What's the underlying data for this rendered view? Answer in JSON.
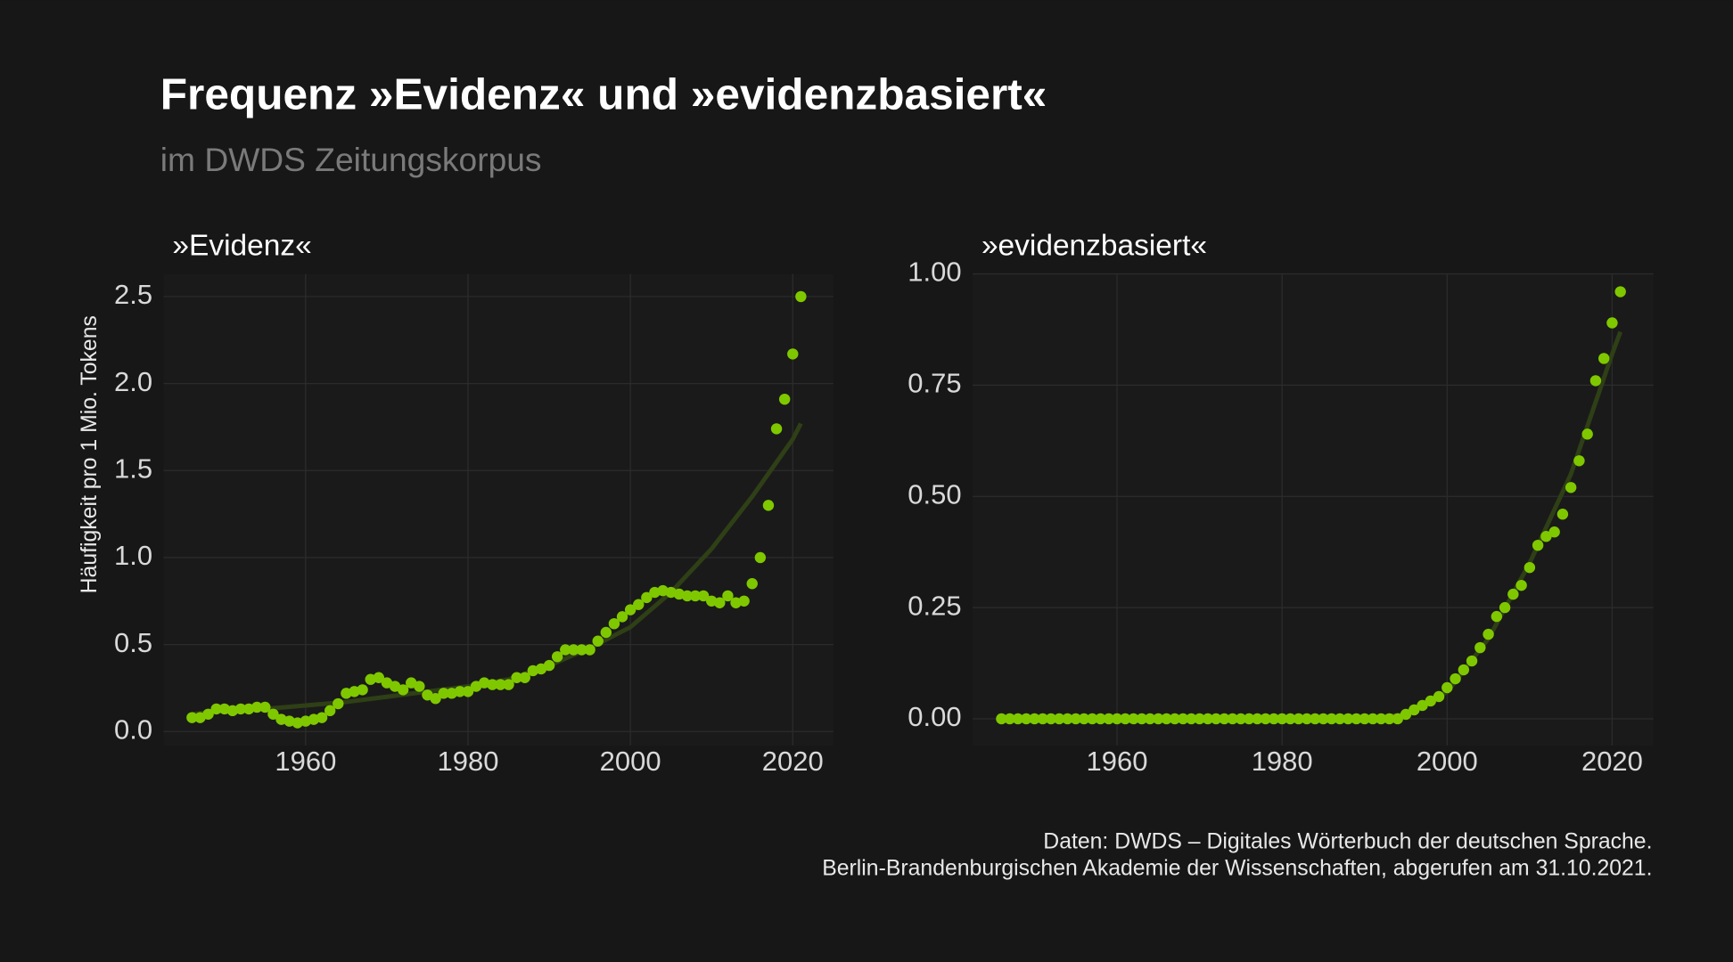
{
  "title": "Frequenz »Evidenz« und »evidenzbasiert«",
  "subtitle": "im DWDS Zeitungskorpus",
  "caption": [
    "Daten: DWDS – Digitales Wörterbuch der deutschen Sprache.",
    "Berlin-Brandenburgischen Akademie der Wissenschaften, abgerufen am 31.10.2021."
  ],
  "chart_data": [
    {
      "type": "scatter",
      "title": "»Evidenz«",
      "y_label": "Häufigkeit pro 1 Mio. Tokens",
      "x": [
        1946,
        1947,
        1948,
        1949,
        1950,
        1951,
        1952,
        1953,
        1954,
        1955,
        1956,
        1957,
        1958,
        1959,
        1960,
        1961,
        1962,
        1963,
        1964,
        1965,
        1966,
        1967,
        1968,
        1969,
        1970,
        1971,
        1972,
        1973,
        1974,
        1975,
        1976,
        1977,
        1978,
        1979,
        1980,
        1981,
        1982,
        1983,
        1984,
        1985,
        1986,
        1987,
        1988,
        1989,
        1990,
        1991,
        1992,
        1993,
        1994,
        1995,
        1996,
        1997,
        1998,
        1999,
        2000,
        2001,
        2002,
        2003,
        2004,
        2005,
        2006,
        2007,
        2008,
        2009,
        2010,
        2011,
        2012,
        2013,
        2014,
        2015,
        2016,
        2017,
        2018,
        2019,
        2020,
        2021
      ],
      "values": [
        0.08,
        0.08,
        0.1,
        0.13,
        0.13,
        0.12,
        0.13,
        0.13,
        0.14,
        0.14,
        0.1,
        0.07,
        0.06,
        0.05,
        0.06,
        0.07,
        0.08,
        0.12,
        0.16,
        0.22,
        0.23,
        0.24,
        0.3,
        0.31,
        0.28,
        0.26,
        0.24,
        0.28,
        0.26,
        0.21,
        0.19,
        0.22,
        0.22,
        0.23,
        0.23,
        0.26,
        0.28,
        0.27,
        0.27,
        0.27,
        0.31,
        0.31,
        0.35,
        0.36,
        0.38,
        0.43,
        0.47,
        0.47,
        0.47,
        0.47,
        0.52,
        0.57,
        0.62,
        0.66,
        0.7,
        0.73,
        0.77,
        0.8,
        0.81,
        0.8,
        0.79,
        0.78,
        0.78,
        0.78,
        0.75,
        0.74,
        0.78,
        0.74,
        0.75,
        0.85,
        1.0,
        1.3,
        1.74,
        1.91,
        2.17,
        2.5
      ],
      "color": "#7fc800",
      "trend": {
        "x": [
          1946,
          1950,
          1955,
          1960,
          1965,
          1970,
          1975,
          1980,
          1985,
          1990,
          1995,
          2000,
          2005,
          2010,
          2015,
          2020,
          2021
        ],
        "values": [
          0.1,
          0.12,
          0.13,
          0.15,
          0.17,
          0.2,
          0.23,
          0.26,
          0.3,
          0.38,
          0.48,
          0.6,
          0.8,
          1.05,
          1.35,
          1.68,
          1.77
        ],
        "color": "#2f3f16"
      },
      "xlim": [
        1942.5,
        2025
      ],
      "xticks": [
        1960,
        1980,
        2000,
        2020
      ],
      "ylim": [
        -0.08,
        2.63
      ],
      "yticks": [
        {
          "value": 0,
          "label": "0.0"
        },
        0.5,
        {
          "value": 1,
          "label": "1.0"
        },
        1.5,
        {
          "value": 2,
          "label": "2.0"
        },
        2.5
      ],
      "grid": true
    },
    {
      "type": "scatter",
      "title": "»evidenzbasiert«",
      "x": [
        1946,
        1947,
        1948,
        1949,
        1950,
        1951,
        1952,
        1953,
        1954,
        1955,
        1956,
        1957,
        1958,
        1959,
        1960,
        1961,
        1962,
        1963,
        1964,
        1965,
        1966,
        1967,
        1968,
        1969,
        1970,
        1971,
        1972,
        1973,
        1974,
        1975,
        1976,
        1977,
        1978,
        1979,
        1980,
        1981,
        1982,
        1983,
        1984,
        1985,
        1986,
        1987,
        1988,
        1989,
        1990,
        1991,
        1992,
        1993,
        1994,
        1995,
        1996,
        1997,
        1998,
        1999,
        2000,
        2001,
        2002,
        2003,
        2004,
        2005,
        2006,
        2007,
        2008,
        2009,
        2010,
        2011,
        2012,
        2013,
        2014,
        2015,
        2016,
        2017,
        2018,
        2019,
        2020,
        2021
      ],
      "values": [
        0,
        0,
        0,
        0,
        0,
        0,
        0,
        0,
        0,
        0,
        0,
        0,
        0,
        0,
        0,
        0,
        0,
        0,
        0,
        0,
        0,
        0,
        0,
        0,
        0,
        0,
        0,
        0,
        0,
        0,
        0,
        0,
        0,
        0,
        0,
        0,
        0,
        0,
        0,
        0,
        0,
        0,
        0,
        0,
        0,
        0,
        0,
        0,
        0,
        0.01,
        0.02,
        0.03,
        0.04,
        0.05,
        0.07,
        0.09,
        0.11,
        0.13,
        0.16,
        0.19,
        0.23,
        0.25,
        0.28,
        0.3,
        0.34,
        0.39,
        0.41,
        0.42,
        0.46,
        0.52,
        0.58,
        0.64,
        0.76,
        0.81,
        0.89,
        0.96
      ],
      "color": "#7fc800",
      "trend": {
        "x": [
          1946,
          1950,
          1955,
          1960,
          1965,
          1970,
          1975,
          1980,
          1985,
          1990,
          1995,
          2000,
          2005,
          2010,
          2015,
          2020,
          2021
        ],
        "values": [
          0,
          0,
          0,
          0,
          0,
          0,
          0,
          0,
          0,
          0,
          0.01,
          0.06,
          0.18,
          0.35,
          0.55,
          0.82,
          0.87
        ],
        "color": "#2f3f16"
      },
      "xlim": [
        1942.5,
        2025
      ],
      "xticks": [
        1960,
        1980,
        2000,
        2020
      ],
      "ylim": [
        -0.06,
        1.0
      ],
      "yticks": [
        {
          "value": 0,
          "label": "0.00"
        },
        {
          "value": 0.25,
          "label": "0.25"
        },
        {
          "value": 0.5,
          "label": "0.50"
        },
        {
          "value": 0.75,
          "label": "0.75"
        },
        {
          "value": 1,
          "label": "1.00"
        }
      ],
      "grid": true
    }
  ]
}
